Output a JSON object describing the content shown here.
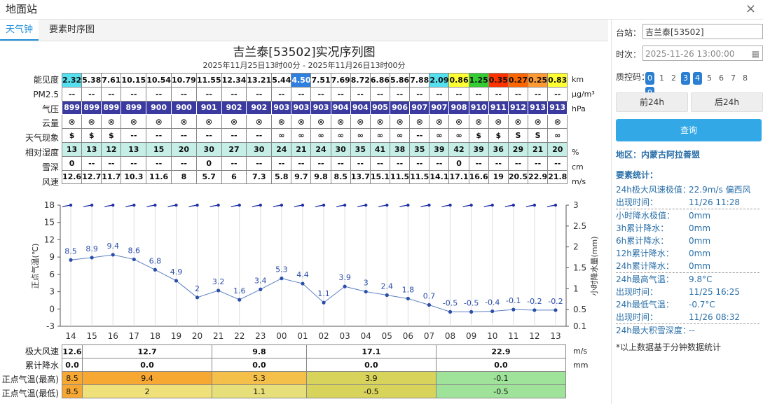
{
  "window": {
    "title": "地面站",
    "close": "×"
  },
  "tabs": [
    "天气钟",
    "要素时序图"
  ],
  "chart": {
    "title": "吉兰泰[53502]实况序列图",
    "subtitle": "2025年11月25日13时00分 - 2025年11月26日13时00分"
  },
  "row_labels": [
    "能见度",
    "PM2.5",
    "气压",
    "云量",
    "天气现象",
    "相对湿度",
    "雪深",
    "风速"
  ],
  "row_units": [
    "km",
    "μg/m³",
    "hPa",
    "",
    "",
    "%",
    "cm",
    "m/s"
  ],
  "hours": [
    "14",
    "15",
    "16",
    "17",
    "18",
    "19",
    "20",
    "21",
    "22",
    "23",
    "00",
    "01",
    "02",
    "03",
    "04",
    "05",
    "06",
    "07",
    "08",
    "09",
    "10",
    "11",
    "12",
    "13"
  ],
  "visibility": [
    "2.32",
    "5.38",
    "7.61",
    "10.15",
    "10.54",
    "10.79",
    "11.55",
    "12.34",
    "13.21",
    "5.44",
    "4.50",
    "7.51",
    "7.69",
    "8.72",
    "6.86",
    "5.86",
    "7.88",
    "2.09",
    "0.86",
    "1.25",
    "0.35",
    "0.27",
    "0.25",
    "0.83"
  ],
  "visibility_colors": [
    "#55e0f0",
    "#ffffff",
    "#ffffff",
    "#ffffff",
    "#ffffff",
    "#ffffff",
    "#ffffff",
    "#ffffff",
    "#ffffff",
    "#ffffff",
    "#2f7fe0",
    "#ffffff",
    "#ffffff",
    "#ffffff",
    "#ffffff",
    "#ffffff",
    "#ffffff",
    "#55e0f0",
    "#ffff33",
    "#33cc33",
    "#ff3300",
    "#ff6600",
    "#ff9933",
    "#ffff33"
  ],
  "pm25": [
    "--",
    "--",
    "--",
    "--",
    "--",
    "--",
    "--",
    "--",
    "--",
    "--",
    "--",
    "--",
    "--",
    "--",
    "--",
    "--",
    "--",
    "--",
    "--",
    "--",
    "--",
    "--",
    "--",
    "--"
  ],
  "pressure": [
    "899",
    "899",
    "899",
    "899",
    "900",
    "900",
    "901",
    "902",
    "902",
    "903",
    "903",
    "903",
    "904",
    "904",
    "905",
    "906",
    "907",
    "907",
    "908",
    "910",
    "911",
    "912",
    "913",
    "913"
  ],
  "cloud": [
    "⊗",
    "⊗",
    "⊗",
    "⊗",
    "⊗",
    "⊗",
    "⊗",
    "⊗",
    "⊗",
    "⊗",
    "⊗",
    "⊗",
    "⊗",
    "⊗",
    "⊗",
    "⊗",
    "⊗",
    "⊗",
    "⊗",
    "⊗",
    "⊗",
    "⊗",
    "⊗",
    "⊗"
  ],
  "weather": [
    "$",
    "$",
    "$",
    "--",
    "--",
    "--",
    "--",
    "--",
    "--",
    "∞",
    "∞",
    "∞",
    "∞",
    "∞",
    "∞",
    "∞",
    "--",
    "∞",
    "∞",
    "$",
    "$",
    "S",
    "S",
    "∞"
  ],
  "humidity": [
    "13",
    "13",
    "12",
    "13",
    "15",
    "20",
    "30",
    "27",
    "30",
    "24",
    "21",
    "24",
    "30",
    "35",
    "41",
    "38",
    "35",
    "39",
    "42",
    "39",
    "36",
    "29",
    "21",
    "20"
  ],
  "snow": [
    "0",
    "--",
    "--",
    "--",
    "--",
    "--",
    "0",
    "--",
    "--",
    "--",
    "--",
    "--",
    "--",
    "--",
    "--",
    "--",
    "--",
    "--",
    "0",
    "--",
    "--",
    "--",
    "--",
    "--"
  ],
  "wind": [
    "12.6",
    "12.7",
    "11.7",
    "10.3",
    "11.6",
    "8",
    "5.7",
    "6",
    "7.3",
    "5.8",
    "9.7",
    "9.8",
    "8.5",
    "13.7",
    "15.1",
    "11.5",
    "11.5",
    "14.1",
    "17.1",
    "16.6",
    "19",
    "20.5",
    "22.9",
    "21.8"
  ],
  "chart_data": {
    "type": "line",
    "x": [
      "14",
      "15",
      "16",
      "17",
      "18",
      "19",
      "20",
      "21",
      "22",
      "23",
      "00",
      "01",
      "02",
      "03",
      "04",
      "05",
      "06",
      "07",
      "08",
      "09",
      "10",
      "11",
      "12",
      "13"
    ],
    "series": [
      {
        "values": [
          8.5,
          8.9,
          9.4,
          8.6,
          6.8,
          4.9,
          2,
          3.2,
          1.6,
          3.4,
          5.3,
          4.4,
          1.1,
          3.9,
          3,
          2.4,
          1.8,
          0.7,
          -0.5,
          -0.5,
          -0.4,
          -0.1,
          -0.2,
          -0.2
        ]
      }
    ],
    "ylabel": "正点气温(℃)",
    "y2label": "小时降水量(mm)",
    "yticks": [
      "18",
      "15",
      "12",
      "9",
      "6",
      "3",
      "0",
      "-3"
    ],
    "y2ticks": [
      "3",
      "2.5",
      "2",
      "1.5",
      "1",
      "0.5",
      "0.1"
    ],
    "ylim": [
      -3,
      18
    ],
    "y2lim": [
      0.1,
      3
    ],
    "grid": "vertical"
  },
  "summary": {
    "labels": [
      "极大风速",
      "累计降水",
      "正点气温(最高)",
      "正点气温(最低)"
    ],
    "units": [
      "m/s",
      "mm"
    ],
    "wind_first": "12.6",
    "precip_first": "0.0",
    "tmax_first": "8.5",
    "tmin_first": "8.5",
    "wind": [
      "12.7",
      "9.8",
      "17.1",
      "22.9"
    ],
    "precip": [
      "0.0",
      "0.0",
      "0.0",
      "0.0"
    ],
    "tmax": [
      "9.4",
      "5.3",
      "3.9",
      "-0.1"
    ],
    "tmin": [
      "2",
      "1.1",
      "-0.5",
      "-0.5"
    ],
    "tmax_colors": [
      "#f7a832",
      "#f5c04a",
      "#d8d35a",
      "#9fe39a"
    ],
    "tmin_colors": [
      "#f0e07a",
      "#e6df7a",
      "#d8d35a",
      "#9fe39a"
    ],
    "first_color": "#f7a832"
  },
  "panel": {
    "station_label": "台站：",
    "station_value": "吉兰泰[53502]",
    "time_label": "时次：",
    "time_value": "2025-11-26 13:00:00",
    "qc_label": "质控码：",
    "qc_codes": [
      "0",
      "1",
      "2",
      "3",
      "4",
      "5",
      "6",
      "7",
      "8",
      "9"
    ],
    "qc_on": [
      true,
      false,
      false,
      true,
      true,
      false,
      false,
      false,
      false,
      true
    ],
    "prev_btn": "前24h",
    "next_btn": "后24h",
    "query_btn": "查询",
    "region": "地区：内蒙古阿拉善盟",
    "stats_title": "要素统计：",
    "stats": [
      {
        "k": "24h极大风速极值：",
        "v": "22.9m/s 偏西风"
      },
      {
        "k": "出现时间：",
        "v": "11/26 11:28"
      },
      {
        "k": "小时降水极值：",
        "v": "0mm"
      },
      {
        "k": "3h累计降水：",
        "v": "0mm"
      },
      {
        "k": "6h累计降水：",
        "v": "0mm"
      },
      {
        "k": "12h累计降水：",
        "v": "0mm"
      },
      {
        "k": "24h累计降水：",
        "v": "0mm"
      },
      {
        "k": "24h最高气温：",
        "v": "9.8°C"
      },
      {
        "k": "出现时间：",
        "v": "11/25 16:25"
      },
      {
        "k": "24h最低气温：",
        "v": "-0.7°C"
      },
      {
        "k": "出现时间：",
        "v": "11/26 08:32"
      },
      {
        "k": "24h最大积雪深度：",
        "v": "--"
      }
    ],
    "footnote": "*以上数据基于分钟数据统计"
  }
}
